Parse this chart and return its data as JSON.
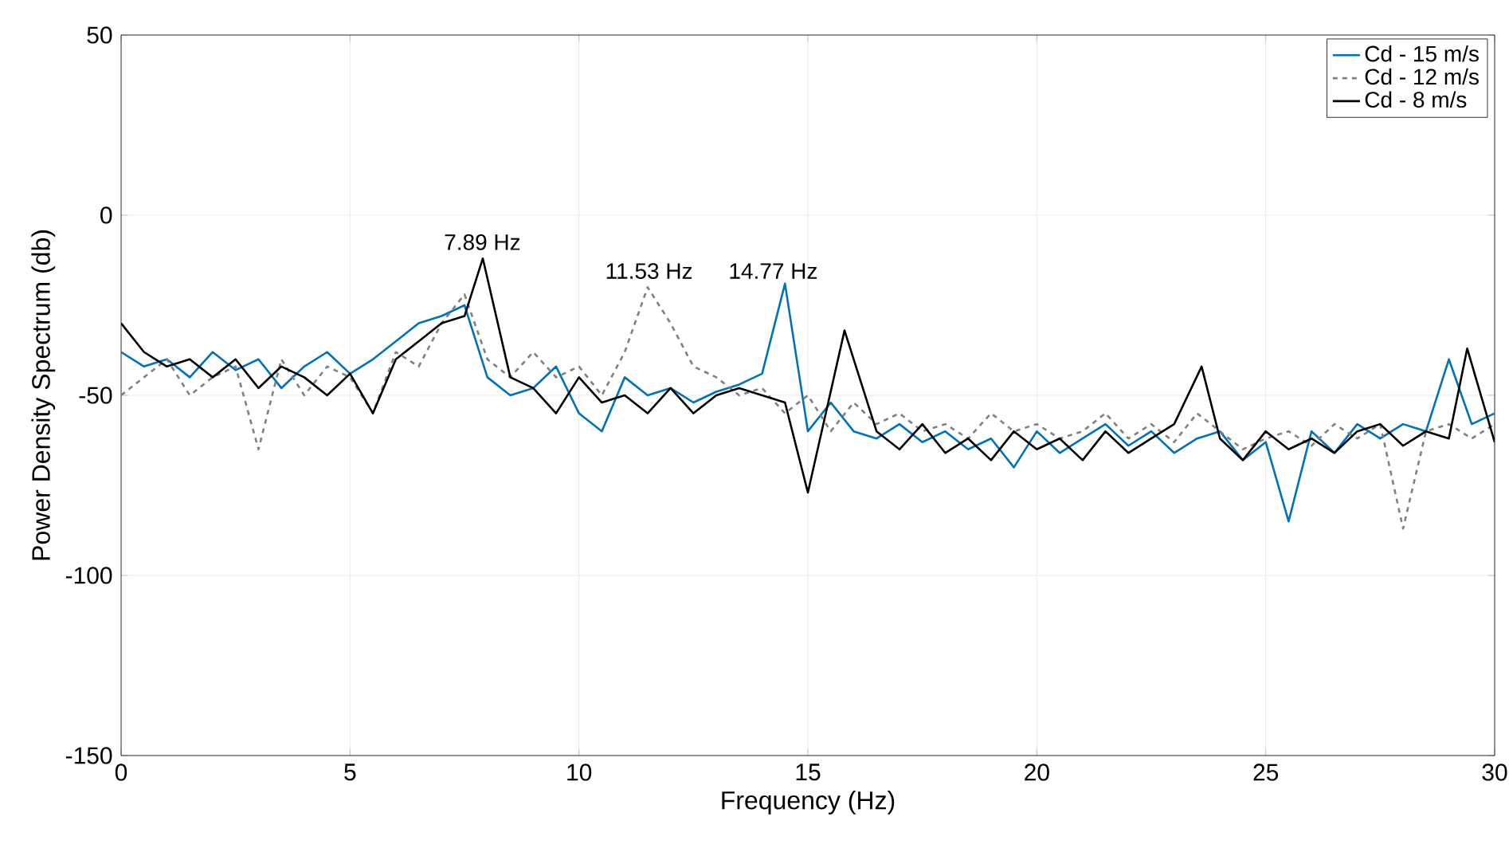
{
  "chart_data": {
    "type": "line",
    "xlabel": "Frequency (Hz)",
    "ylabel": "Power Density Spectrum (db)",
    "xlim": [
      0,
      30
    ],
    "ylim": [
      -150,
      50
    ],
    "xticks": [
      0,
      5,
      10,
      15,
      20,
      25,
      30
    ],
    "yticks": [
      -150,
      -100,
      -50,
      0,
      50
    ],
    "grid": true,
    "legend": "top right",
    "annotations": [
      {
        "text": "7.89 Hz",
        "x": 7.89,
        "y": -12
      },
      {
        "text": "11.53 Hz",
        "x": 11.53,
        "y": -20
      },
      "14.77 Hz"
    ],
    "series": [
      {
        "name": "Cd - 15 m/s",
        "color": "#0072bd",
        "line_style": "solid",
        "x": [
          0,
          0.5,
          1,
          1.5,
          2,
          2.5,
          3,
          3.5,
          4,
          4.5,
          5,
          5.5,
          6,
          6.5,
          7,
          7.5,
          8,
          8.5,
          9,
          9.5,
          10,
          10.5,
          11,
          11.5,
          12,
          12.5,
          13,
          13.5,
          14,
          14.5,
          15,
          15.5,
          16,
          16.5,
          17,
          17.5,
          18,
          18.5,
          19,
          19.5,
          20,
          20.5,
          21,
          21.5,
          22,
          22.5,
          23,
          23.5,
          24,
          24.5,
          25,
          25.5,
          26,
          26.5,
          27,
          27.5,
          28,
          28.5,
          29,
          29.5,
          30
        ],
        "values": [
          -38,
          -42,
          -40,
          -45,
          -38,
          -43,
          -40,
          -48,
          -42,
          -38,
          -44,
          -40,
          -35,
          -30,
          -28,
          -25,
          -45,
          -50,
          -48,
          -42,
          -55,
          -60,
          -45,
          -50,
          -48,
          -52,
          -49,
          -47,
          -44,
          -19,
          -60,
          -52,
          -60,
          -62,
          -58,
          -63,
          -60,
          -65,
          -62,
          -70,
          -60,
          -66,
          -62,
          -58,
          -64,
          -60,
          -66,
          -62,
          -60,
          -68,
          -63,
          -85,
          -60,
          -66,
          -58,
          -62,
          -58,
          -60,
          -40,
          -58,
          -55
        ]
      },
      {
        "name": "Cd - 12 m/s",
        "color": "#808080",
        "line_style": "dashed",
        "x": [
          0,
          0.5,
          1,
          1.5,
          2,
          2.5,
          3,
          3.5,
          4,
          4.5,
          5,
          5.5,
          6,
          6.5,
          7,
          7.5,
          8,
          8.5,
          9,
          9.5,
          10,
          10.5,
          11,
          11.5,
          12,
          12.5,
          13,
          13.5,
          14,
          14.5,
          15,
          15.5,
          16,
          16.5,
          17,
          17.5,
          18,
          18.5,
          19,
          19.5,
          20,
          20.5,
          21,
          21.5,
          22,
          22.5,
          23,
          23.5,
          24,
          24.5,
          25,
          25.5,
          26,
          26.5,
          27,
          27.5,
          28,
          28.5,
          29,
          29.5,
          30
        ],
        "values": [
          -50,
          -45,
          -40,
          -50,
          -45,
          -42,
          -65,
          -40,
          -50,
          -42,
          -45,
          -55,
          -38,
          -42,
          -30,
          -22,
          -40,
          -45,
          -38,
          -45,
          -42,
          -50,
          -38,
          -20,
          -30,
          -42,
          -45,
          -50,
          -48,
          -55,
          -50,
          -60,
          -52,
          -58,
          -55,
          -60,
          -58,
          -62,
          -55,
          -60,
          -58,
          -62,
          -60,
          -55,
          -62,
          -58,
          -63,
          -55,
          -60,
          -65,
          -62,
          -60,
          -64,
          -58,
          -62,
          -58,
          -87,
          -60,
          -58,
          -62,
          -58
        ]
      },
      {
        "name": "Cd -  8 m/s",
        "color": "#000000",
        "line_style": "solid",
        "x": [
          0,
          0.5,
          1,
          1.5,
          2,
          2.5,
          3,
          3.5,
          4,
          4.5,
          5,
          5.5,
          6,
          6.5,
          7,
          7.5,
          7.9,
          8.5,
          9,
          9.5,
          10,
          10.5,
          11,
          11.5,
          12,
          12.5,
          13,
          13.5,
          14,
          14.5,
          15,
          15.8,
          16.5,
          17,
          17.5,
          18,
          18.5,
          19,
          19.5,
          20,
          20.5,
          21,
          21.5,
          22,
          22.5,
          23,
          23.6,
          24,
          24.5,
          25,
          25.5,
          26,
          26.5,
          27,
          27.5,
          28,
          28.5,
          29,
          29.4,
          30
        ],
        "values": [
          -30,
          -38,
          -42,
          -40,
          -45,
          -40,
          -48,
          -42,
          -45,
          -50,
          -44,
          -55,
          -40,
          -35,
          -30,
          -28,
          -12,
          -45,
          -48,
          -55,
          -45,
          -52,
          -50,
          -55,
          -48,
          -55,
          -50,
          -48,
          -50,
          -52,
          -77,
          -32,
          -60,
          -65,
          -58,
          -66,
          -62,
          -68,
          -60,
          -65,
          -62,
          -68,
          -60,
          -66,
          -62,
          -58,
          -42,
          -62,
          -68,
          -60,
          -65,
          -62,
          -66,
          -60,
          -58,
          -64,
          -60,
          -62,
          -37,
          -63
        ]
      }
    ]
  }
}
